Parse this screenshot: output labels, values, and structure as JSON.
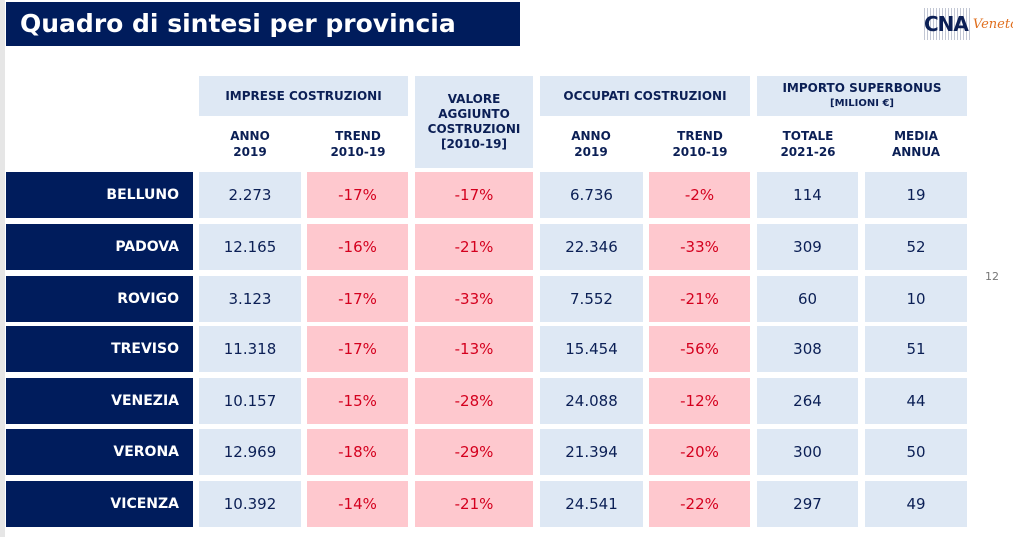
{
  "title": "Quadro di sintesi per provincia",
  "logo": {
    "main": "CNA",
    "sub": "Veneto"
  },
  "page_number": "12",
  "headers": {
    "imprese": "IMPRESE COSTRUZIONI",
    "valore": "VALORE AGGIUNTO COSTRUZIONI [2010-19]",
    "occupati": "OCCUPATI COSTRUZIONI",
    "superbonus": "IMPORTO SUPERBONUS",
    "superbonus_unit": "[MILIONI €]",
    "anno": "ANNO 2019",
    "trend": "TREND 2010-19",
    "totale": "TOTALE 2021-26",
    "media": "MEDIA ANNUA"
  },
  "rows": [
    {
      "province": "BELLUNO",
      "imprese_2019": "2.273",
      "imprese_trend": "-17%",
      "valore": "-17%",
      "occupati_2019": "6.736",
      "occupati_trend": "-2%",
      "totale": "114",
      "media": "19"
    },
    {
      "province": "PADOVA",
      "imprese_2019": "12.165",
      "imprese_trend": "-16%",
      "valore": "-21%",
      "occupati_2019": "22.346",
      "occupati_trend": "-33%",
      "totale": "309",
      "media": "52"
    },
    {
      "province": "ROVIGO",
      "imprese_2019": "3.123",
      "imprese_trend": "-17%",
      "valore": "-33%",
      "occupati_2019": "7.552",
      "occupati_trend": "-21%",
      "totale": "60",
      "media": "10"
    },
    {
      "province": "TREVISO",
      "imprese_2019": "11.318",
      "imprese_trend": "-17%",
      "valore": "-13%",
      "occupati_2019": "15.454",
      "occupati_trend": "-56%",
      "totale": "308",
      "media": "51"
    },
    {
      "province": "VENEZIA",
      "imprese_2019": "10.157",
      "imprese_trend": "-15%",
      "valore": "-28%",
      "occupati_2019": "24.088",
      "occupati_trend": "-12%",
      "totale": "264",
      "media": "44"
    },
    {
      "province": "VERONA",
      "imprese_2019": "12.969",
      "imprese_trend": "-18%",
      "valore": "-29%",
      "occupati_2019": "21.394",
      "occupati_trend": "-20%",
      "totale": "300",
      "media": "50"
    },
    {
      "province": "VICENZA",
      "imprese_2019": "10.392",
      "imprese_trend": "-14%",
      "valore": "-21%",
      "occupati_2019": "24.541",
      "occupati_trend": "-22%",
      "totale": "297",
      "media": "49"
    }
  ]
}
